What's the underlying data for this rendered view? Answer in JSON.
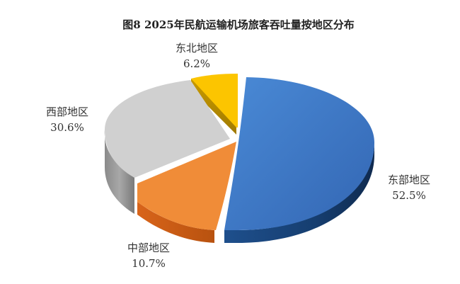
{
  "chart_data": {
    "type": "pie",
    "title": "图8  2025年民航运输机场旅客吞吐量按地区分布",
    "categories": [
      "东部地区",
      "中部地区",
      "西部地区",
      "东北地区"
    ],
    "values": [
      52.5,
      10.7,
      30.6,
      6.2
    ],
    "value_labels": [
      "52.5%",
      "10.7%",
      "30.6%",
      "6.2%"
    ],
    "colors": [
      "#3a78c4",
      "#ee8530",
      "#cccccc",
      "#fbc400"
    ],
    "exploded": true,
    "style": "3d"
  }
}
